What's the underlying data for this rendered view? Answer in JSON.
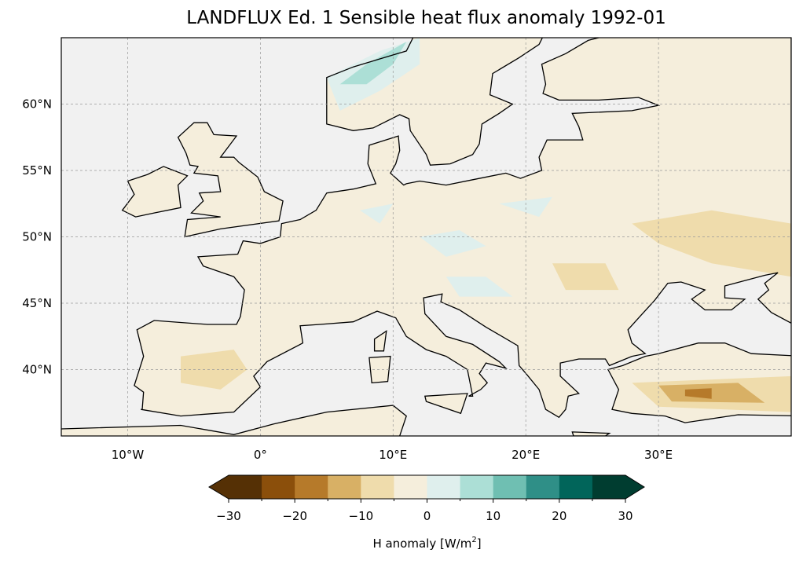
{
  "chart_data": {
    "type": "heatmap",
    "title": "LANDFLUX Ed. 1 Sensible heat flux anomaly 1992-01",
    "projection": "PlateCarree",
    "extent": {
      "lon": [
        -15,
        40
      ],
      "lat": [
        35,
        65
      ]
    },
    "x_ticks": [
      {
        "value": -10,
        "label": "10°W"
      },
      {
        "value": 0,
        "label": "0°"
      },
      {
        "value": 10,
        "label": "10°E"
      },
      {
        "value": 20,
        "label": "20°E"
      },
      {
        "value": 30,
        "label": "30°E"
      }
    ],
    "y_ticks": [
      {
        "value": 40,
        "label": "40°N"
      },
      {
        "value": 45,
        "label": "45°N"
      },
      {
        "value": 50,
        "label": "50°N"
      },
      {
        "value": 55,
        "label": "55°N"
      },
      {
        "value": 60,
        "label": "60°N"
      }
    ],
    "grid": true,
    "colorbar": {
      "label": "H anomaly [W/m²]",
      "label_main": "H anomaly [W/m",
      "label_sup": "2",
      "label_end": "]",
      "range": [
        -30,
        30
      ],
      "levels": [
        -30,
        -25,
        -20,
        -15,
        -10,
        -5,
        0,
        5,
        10,
        15,
        20,
        25,
        30
      ],
      "tick_labels": [
        {
          "value": -30,
          "label": "−30"
        },
        {
          "value": -20,
          "label": "−20"
        },
        {
          "value": -10,
          "label": "−10"
        },
        {
          "value": 0,
          "label": "0"
        },
        {
          "value": 10,
          "label": "10"
        },
        {
          "value": 20,
          "label": "20"
        },
        {
          "value": 30,
          "label": "30"
        }
      ],
      "colors": [
        "#553005",
        "#8b4f0b",
        "#b67a2a",
        "#d8b065",
        "#efdcac",
        "#f5eedc",
        "#dfefed",
        "#acdfd6",
        "#6fbfb2",
        "#2f8f87",
        "#01655a",
        "#003d30"
      ],
      "extend": "both",
      "placement": "bottom"
    },
    "background_color": "#f1f1f1"
  }
}
